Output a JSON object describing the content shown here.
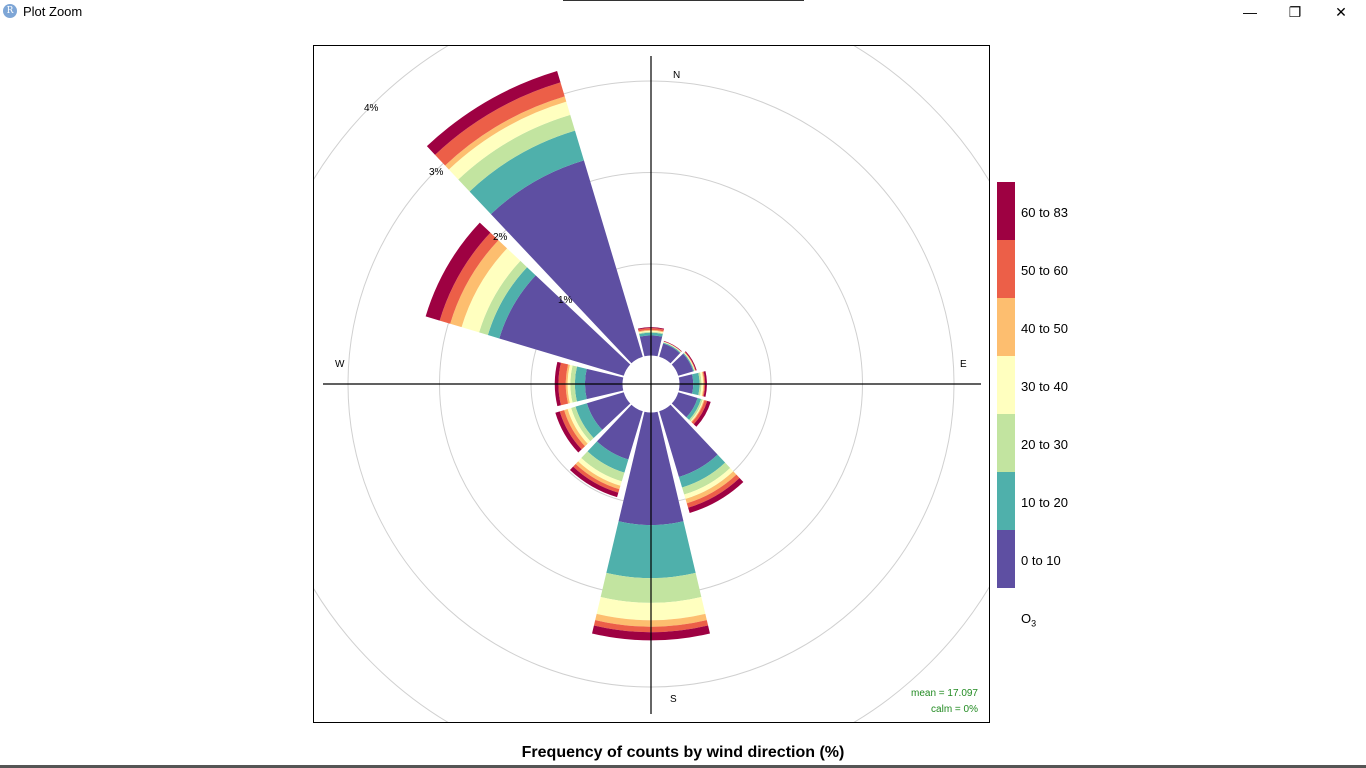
{
  "window": {
    "title": "Plot Zoom",
    "app_icon_letter": "R",
    "controls": {
      "minimize": "—",
      "restore": "❐",
      "close": "✕"
    }
  },
  "chart_data": {
    "type": "polar-stacked-bar",
    "title": "Frequency of counts by wind direction (%)",
    "compass_labels": [
      "N",
      "E",
      "S",
      "W"
    ],
    "radial_ticks": [
      1,
      2,
      3,
      4
    ],
    "radial_tick_labels": [
      "1%",
      "2%",
      "3%",
      "4%"
    ],
    "rmax": 4,
    "legend": {
      "title": "O",
      "title_sub": "3",
      "position": "right",
      "bins": [
        "0 to 10",
        "10 to 20",
        "20 to 30",
        "30 to 40",
        "40 to 50",
        "50 to 60",
        "60 to 83"
      ],
      "colors": [
        "#5e4fa2",
        "#4fb0ab",
        "#c2e4a0",
        "#ffffbf",
        "#fdbe6f",
        "#ec5f48",
        "#9e0142"
      ]
    },
    "stats": {
      "mean": "mean = 17.097",
      "calm": "calm = 0%"
    },
    "directions_deg": [
      0,
      30,
      60,
      90,
      120,
      150,
      180,
      210,
      240,
      270,
      300,
      330
    ],
    "cumulative_percent": [
      [
        0.22,
        0.25,
        0.26,
        0.27,
        0.28,
        0.3,
        0.31
      ],
      [
        0.15,
        0.16,
        0.165,
        0.17,
        0.172,
        0.175,
        0.18
      ],
      [
        0.17,
        0.18,
        0.185,
        0.19,
        0.195,
        0.2,
        0.21
      ],
      [
        0.15,
        0.22,
        0.24,
        0.26,
        0.27,
        0.28,
        0.3
      ],
      [
        0.22,
        0.26,
        0.28,
        0.29,
        0.3,
        0.33,
        0.37
      ],
      [
        0.75,
        0.87,
        0.95,
        1.0,
        1.05,
        1.1,
        1.16
      ],
      [
        1.23,
        1.81,
        2.08,
        2.27,
        2.34,
        2.4,
        2.49
      ],
      [
        0.55,
        0.7,
        0.8,
        0.85,
        0.89,
        0.93,
        0.98
      ],
      [
        0.42,
        0.55,
        0.6,
        0.64,
        0.68,
        0.73,
        0.78
      ],
      [
        0.41,
        0.52,
        0.57,
        0.6,
        0.62,
        0.7,
        0.74
      ],
      [
        1.42,
        1.55,
        1.65,
        1.85,
        1.98,
        2.1,
        2.26
      ],
      [
        2.24,
        2.58,
        2.76,
        2.91,
        2.97,
        3.13,
        3.26
      ]
    ]
  }
}
